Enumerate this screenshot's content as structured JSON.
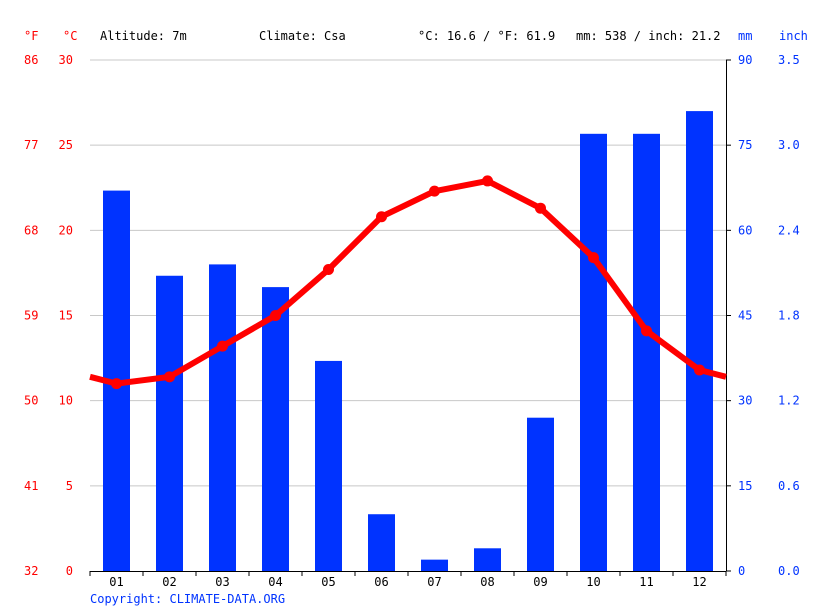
{
  "header": {
    "unit_f": "°F",
    "unit_c": "°C",
    "altitude": "Altitude: 7m",
    "climate": "Climate: Csa",
    "temp_avg": "°C: 16.6 / °F: 61.9",
    "precip_total": "mm: 538 / inch: 21.2",
    "unit_mm": "mm",
    "unit_inch": "inch"
  },
  "footer": {
    "copyright": "Copyright: CLIMATE-DATA.ORG"
  },
  "colors": {
    "temperature": "#ff0000",
    "precipitation": "#0033ff",
    "grid": "#c8c8c8"
  },
  "chart_data": {
    "type": "bar+line",
    "categories": [
      "01",
      "02",
      "03",
      "04",
      "05",
      "06",
      "07",
      "08",
      "09",
      "10",
      "11",
      "12"
    ],
    "series": [
      {
        "type": "bar",
        "axis": "right (mm)",
        "values": [
          67,
          52,
          54,
          50,
          37,
          10,
          2,
          4,
          27,
          77,
          77,
          81
        ]
      },
      {
        "type": "line",
        "axis": "left (°C)",
        "values": [
          11.0,
          11.4,
          13.2,
          15.0,
          17.7,
          20.8,
          22.3,
          22.9,
          21.3,
          18.4,
          14.1,
          11.8
        ],
        "start_value": 11.4,
        "end_value": 11.4
      }
    ],
    "axes": {
      "temp_c": {
        "ylim": [
          0,
          30
        ],
        "ticks": [
          "0",
          "5",
          "10",
          "15",
          "20",
          "25",
          "30"
        ]
      },
      "temp_f": {
        "ticks": [
          "32",
          "41",
          "50",
          "59",
          "68",
          "77",
          "86"
        ]
      },
      "precip_mm": {
        "ylim": [
          0,
          90
        ],
        "ticks": [
          "0",
          "15",
          "30",
          "45",
          "60",
          "75",
          "90"
        ]
      },
      "precip_inch": {
        "ticks": [
          "0.0",
          "0.6",
          "1.2",
          "1.8",
          "2.4",
          "3.0",
          "3.5"
        ]
      }
    },
    "grid": true
  }
}
